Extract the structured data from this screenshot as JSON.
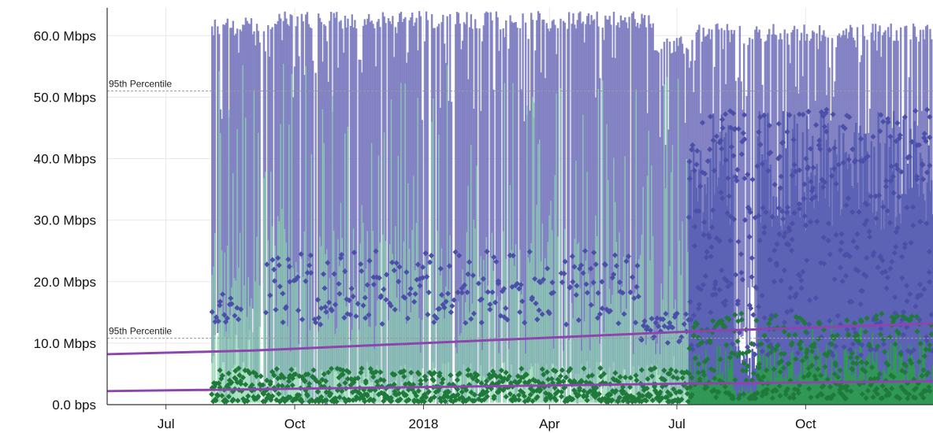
{
  "chart_data": {
    "type": "area",
    "ylim": [
      0,
      64
    ],
    "y_ticks": [
      {
        "value": 0,
        "label": "0.0 bps"
      },
      {
        "value": 10,
        "label": "10.0 Mbps"
      },
      {
        "value": 20,
        "label": "20.0 Mbps"
      },
      {
        "value": 30,
        "label": "30.0 Mbps"
      },
      {
        "value": 40,
        "label": "40.0 Mbps"
      },
      {
        "value": 50,
        "label": "50.0 Mbps"
      },
      {
        "value": 60,
        "label": "60.0 Mbps"
      }
    ],
    "x_range": [
      "2017-05-20",
      "2018-12-31"
    ],
    "x_ticks": [
      {
        "date": "2017-07-01",
        "label": "Jul"
      },
      {
        "date": "2017-10-01",
        "label": "Oct"
      },
      {
        "date": "2018-01-01",
        "label": "2018"
      },
      {
        "date": "2018-04-01",
        "label": "Apr"
      },
      {
        "date": "2018-07-01",
        "label": "Jul"
      },
      {
        "date": "2018-10-01",
        "label": "Oct"
      }
    ],
    "reference_lines": [
      {
        "label": "95th Percentile",
        "value": 51
      },
      {
        "label": "95th Percentile",
        "value": 10.8
      }
    ],
    "trend_lines": [
      {
        "points": [
          {
            "date": "2017-05-20",
            "value": 8.2
          },
          {
            "date": "2017-09-01",
            "value": 8.8
          },
          {
            "date": "2018-07-01",
            "value": 11.8
          },
          {
            "date": "2018-12-31",
            "value": 13.2
          }
        ]
      },
      {
        "points": [
          {
            "date": "2017-05-20",
            "value": 2.2
          },
          {
            "date": "2017-09-01",
            "value": 2.5
          },
          {
            "date": "2018-07-01",
            "value": 3.4
          },
          {
            "date": "2018-12-31",
            "value": 3.8
          }
        ]
      }
    ],
    "daily_peak_envelope": [
      {
        "start": "2017-08-03",
        "end": "2017-09-10",
        "upper": 63,
        "lower": 18
      },
      {
        "start": "2017-09-10",
        "end": "2018-06-15",
        "upper": 64,
        "lower": 7
      },
      {
        "start": "2018-06-15",
        "end": "2018-07-10",
        "upper": 60,
        "lower": 8
      },
      {
        "start": "2018-07-10",
        "end": "2018-12-31",
        "upper": 62,
        "lower": 20
      }
    ],
    "download_avg_scatter_range": [
      {
        "start": "2017-08-03",
        "end": "2017-08-25",
        "low": 13,
        "high": 18
      },
      {
        "start": "2017-09-10",
        "end": "2018-06-05",
        "low": 13,
        "high": 25
      },
      {
        "start": "2018-06-05",
        "end": "2018-07-10",
        "low": 10,
        "high": 15
      },
      {
        "start": "2018-07-10",
        "end": "2018-12-31",
        "low": 8,
        "high": 48
      }
    ],
    "upload_avg_scatter_range": [
      {
        "start": "2017-08-03",
        "end": "2018-07-10",
        "low": 0.5,
        "high": 6
      },
      {
        "start": "2018-07-10",
        "end": "2018-12-31",
        "low": 1,
        "high": 15
      }
    ],
    "colors": {
      "download_peak": "#7b7bc0",
      "download_area": "#5c62b4",
      "upload_peak": "#8fd7b0",
      "upload_area": "#2e9a52",
      "download_marker": "#4b4fa8",
      "upload_marker": "#1f7a3a",
      "trend": "#8e44ad",
      "reference": "#9a9a9a",
      "grid": "#e8e8e8"
    }
  }
}
